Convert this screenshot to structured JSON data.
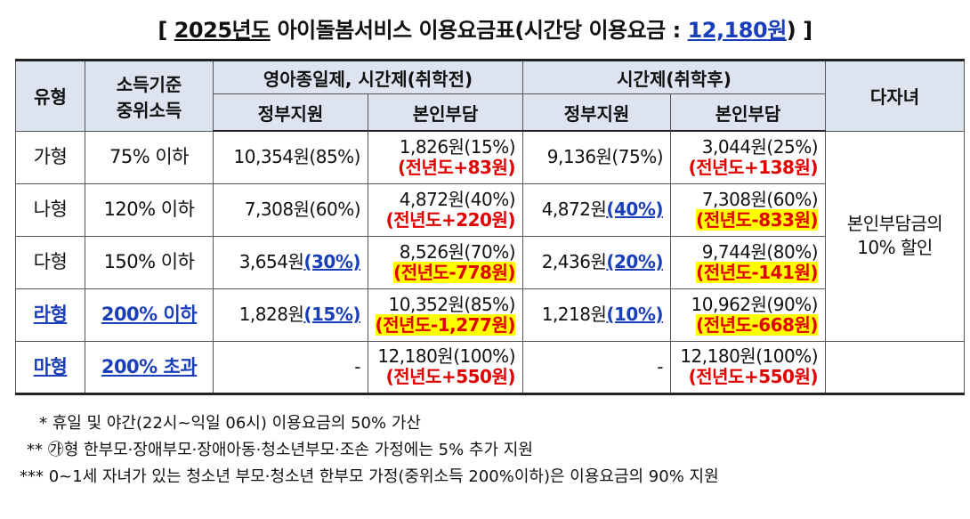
{
  "title": {
    "bracket_open": "[",
    "year": "2025년도",
    "main": "아이돌봄서비스 이용요금표(시간당 이용요금 :",
    "fee": "12,180원",
    "close": ")",
    "bracket_close": "]"
  },
  "header": {
    "type": "유형",
    "income_line1": "소득기준",
    "income_line2": "중위소득",
    "group_before": "영아종일제, 시간제(취학전)",
    "group_after": "시간제(취학후)",
    "gov": "정부지원",
    "self": "본인부담",
    "gov2": "정부지원",
    "self2": "본인부담",
    "multi": "다자녀"
  },
  "rows": [
    {
      "type": "가형",
      "income": "75% 이하",
      "b_gov": "10,354원(85%)",
      "b_gov_pct": "",
      "b_self": "1,826원(15%)",
      "b_self_diff": "(전년도+83원)",
      "a_gov": "9,136원(75%)",
      "a_gov_pct": "",
      "a_self": "3,044원(25%)",
      "a_self_diff": "(전년도+138원)"
    },
    {
      "type": "나형",
      "income": "120% 이하",
      "b_gov": "7,308원(60%)",
      "b_gov_pct": "",
      "b_self": "4,872원(40%)",
      "b_self_diff": "(전년도+220원)",
      "a_gov": "4,872원",
      "a_gov_pct": "(40%)",
      "a_self": "7,308원(60%)",
      "a_self_diff": "(전년도-833원)"
    },
    {
      "type": "다형",
      "income": "150% 이하",
      "b_gov": "3,654원",
      "b_gov_pct": "(30%)",
      "b_self": "8,526원(70%)",
      "b_self_diff": "(전년도-778원)",
      "a_gov": "2,436원",
      "a_gov_pct": "(20%)",
      "a_self": "9,744원(80%)",
      "a_self_diff": "(전년도-141원)"
    },
    {
      "type": "라형",
      "income": "200% 이하",
      "b_gov": "1,828원",
      "b_gov_pct": "(15%)",
      "b_self": "10,352원(85%)",
      "b_self_diff": "(전년도-1,277원)",
      "a_gov": "1,218원",
      "a_gov_pct": "(10%)",
      "a_self": "10,962원(90%)",
      "a_self_diff": "(전년도-668원)"
    },
    {
      "type": "마형",
      "income": "200% 초과",
      "b_gov": "-",
      "b_gov_pct": "",
      "b_self": "12,180원(100%)",
      "b_self_diff": "(전년도+550원)",
      "a_gov": "-",
      "a_gov_pct": "",
      "a_self": "12,180원(100%)",
      "a_self_diff": "(전년도+550원)"
    }
  ],
  "multi_line1": "본인부담금의",
  "multi_line2": "10% 할인",
  "notes": [
    "* 휴일 및 야간(22시~익일 06시) 이용요금의 50% 가산",
    "** ㉮형 한부모·장애부모·장애아동·청소년부모·조손 가정에는 5% 추가 지원",
    "*** 0~1세 자녀가 있는 청소년 부모·청소년 한부모 가정(중위소득 200%이하)은 이용요금의 90% 지원"
  ]
}
